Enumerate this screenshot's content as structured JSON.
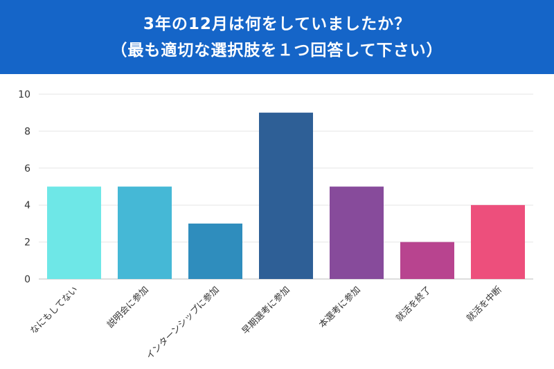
{
  "header": {
    "title_line1": "3年の12月は何をしていましたか？",
    "title_line2": "（最も適切な選択肢を１つ回答して下さい）",
    "background": "#1565c8"
  },
  "chart_data": {
    "type": "bar",
    "categories": [
      "なにもしてない",
      "説明会に参加",
      "インターンシップに参加",
      "早期選考に参加",
      "本選考に参加",
      "就活を終了",
      "就活を中断"
    ],
    "values": [
      5,
      5,
      3,
      9,
      5,
      2,
      4
    ],
    "colors": [
      "#6ee7e7",
      "#45b8d6",
      "#2f8dbd",
      "#2e5f96",
      "#874b9b",
      "#b8448f",
      "#ed4f7c"
    ],
    "ylim": [
      0,
      10
    ],
    "yticks": [
      "0",
      "2",
      "4",
      "6",
      "8",
      "10"
    ],
    "title": "",
    "xlabel": "",
    "ylabel": "",
    "grid": true
  }
}
